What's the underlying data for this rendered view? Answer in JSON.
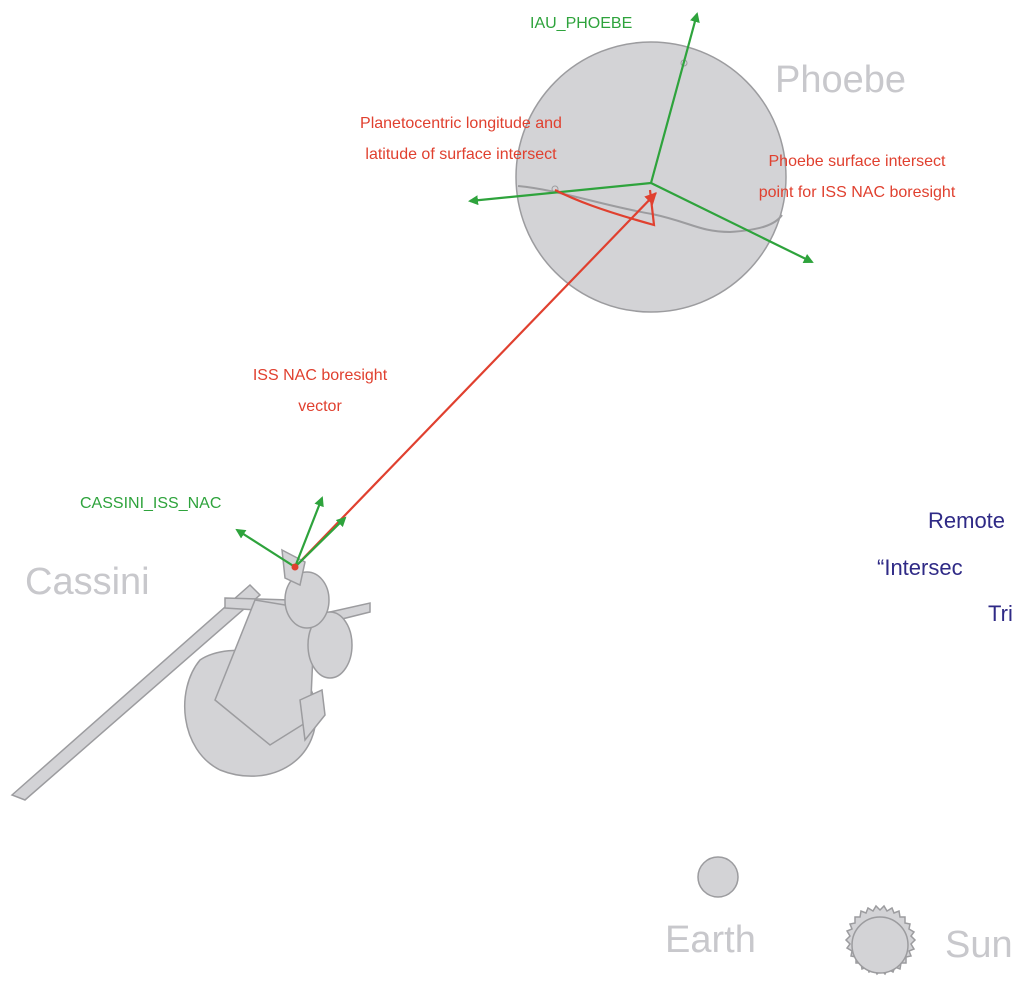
{
  "labels": {
    "iau_phoebe": "IAU_PHOEBE",
    "phoebe": "Phoebe",
    "planetocentric": [
      "Planetocentric longitude and",
      "latitude of surface intersect"
    ],
    "intersect_point": [
      "Phoebe surface intersect",
      "point for ISS NAC boresight"
    ],
    "boresight": [
      "ISS NAC boresight",
      "vector"
    ],
    "cassini_iss_nac": "CASSINI_ISS_NAC",
    "cassini": "Cassini",
    "title": [
      "Remote",
      "“Intersec",
      "Tri"
    ],
    "earth": "Earth",
    "sun": "Sun"
  }
}
